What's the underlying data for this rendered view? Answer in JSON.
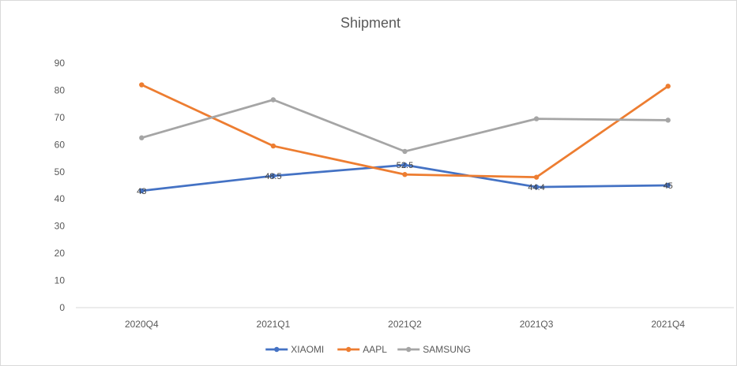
{
  "chart_data": {
    "type": "line",
    "title": "Shipment",
    "categories": [
      "2020Q4",
      "2021Q1",
      "2021Q2",
      "2021Q3",
      "2021Q4"
    ],
    "ylim": [
      0,
      90
    ],
    "yticks": [
      0,
      10,
      20,
      30,
      40,
      50,
      60,
      70,
      80,
      90
    ],
    "grid": false,
    "legend": "bottom",
    "series": [
      {
        "name": "XIAOMI",
        "color": "#4472C4",
        "values": [
          43,
          48.5,
          52.5,
          44.4,
          45
        ],
        "labels": [
          "43",
          "48.5",
          "52.5",
          "44.4",
          "45"
        ]
      },
      {
        "name": "AAPL",
        "color": "#ED7D31",
        "values": [
          82,
          59.5,
          49,
          48,
          81.5
        ]
      },
      {
        "name": "SAMSUNG",
        "color": "#A5A5A5",
        "values": [
          62.5,
          76.5,
          57.5,
          69.5,
          69
        ]
      }
    ]
  }
}
